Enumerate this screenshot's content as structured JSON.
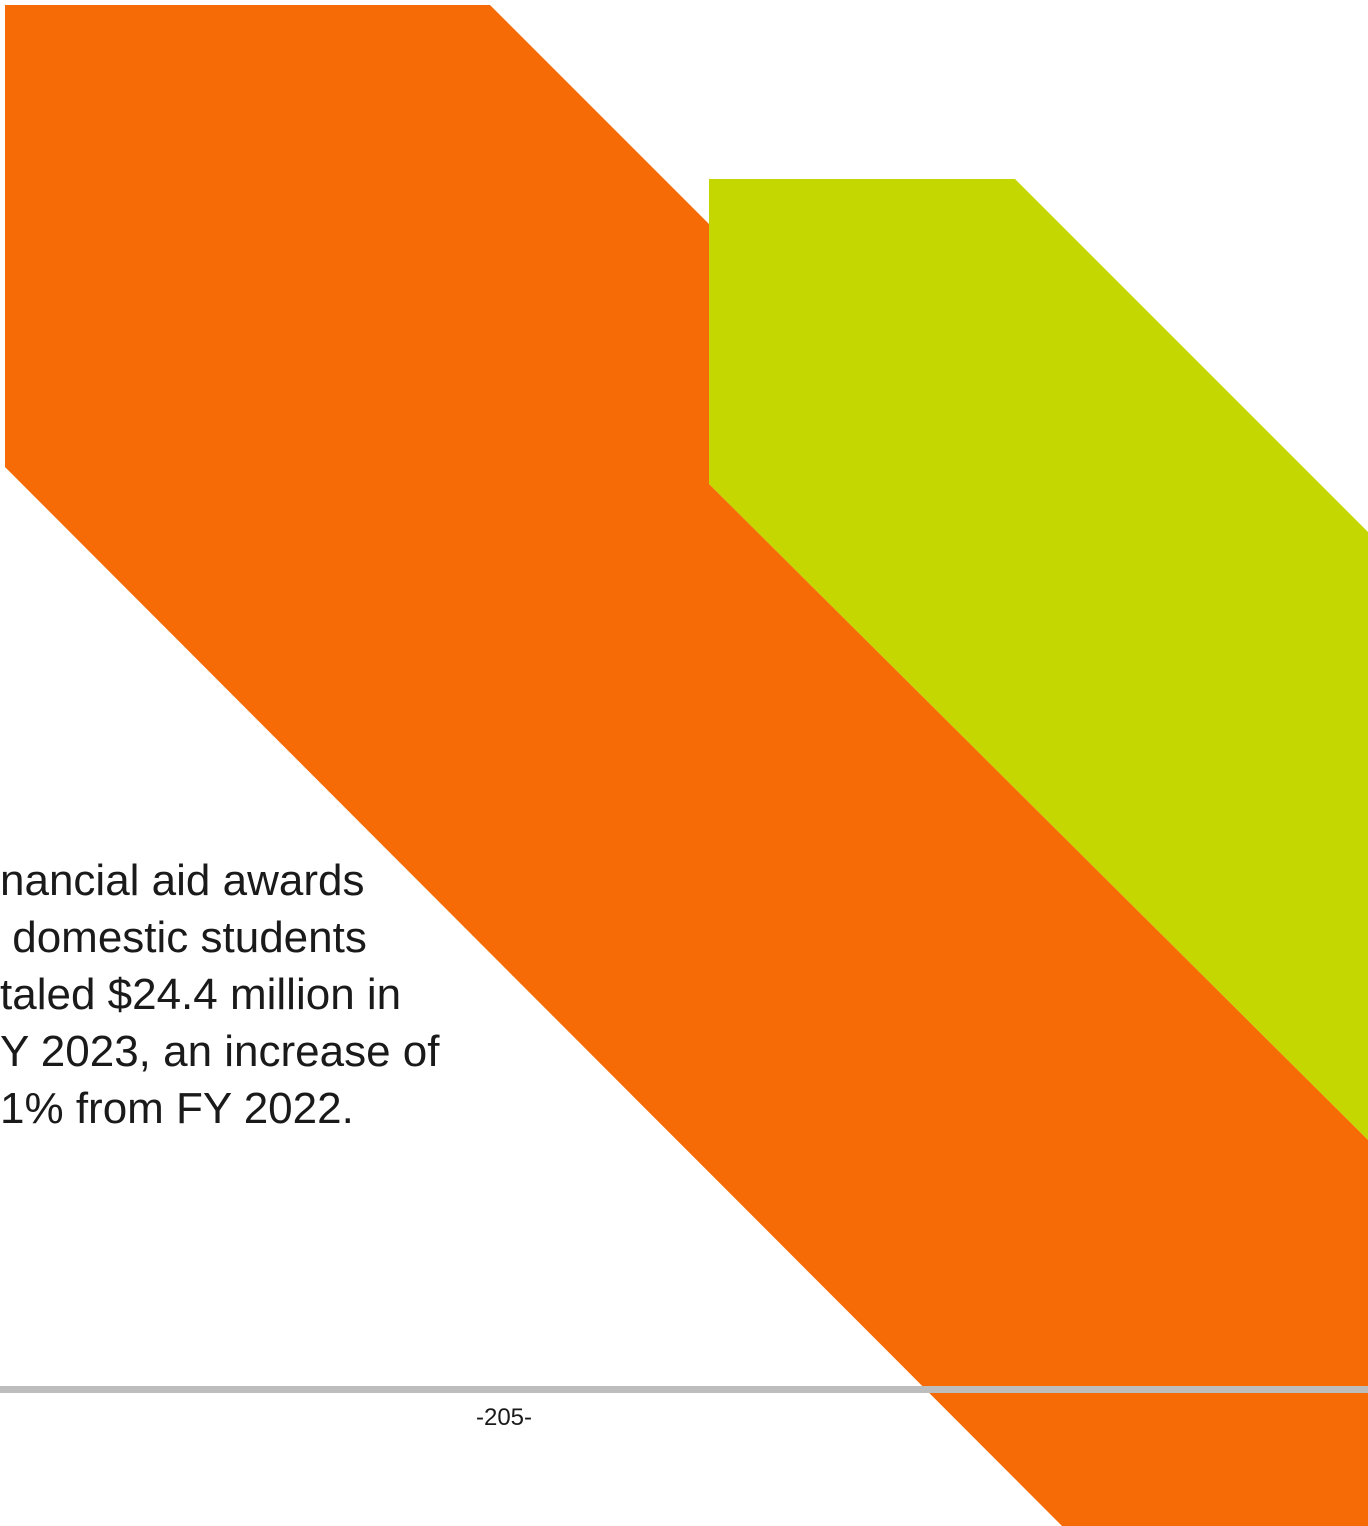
{
  "colors": {
    "orange_band": "#f76b07",
    "green_band": "#c4d700",
    "footer_rule": "#bdbdbd",
    "text": "#1a1a1a"
  },
  "summary": {
    "lines": [
      "nancial aid awards",
      " domestic students",
      "taled $24.4 million in",
      "Y 2023, an increase of",
      "1% from FY 2022."
    ]
  },
  "footer": {
    "page_number": "-205-"
  }
}
